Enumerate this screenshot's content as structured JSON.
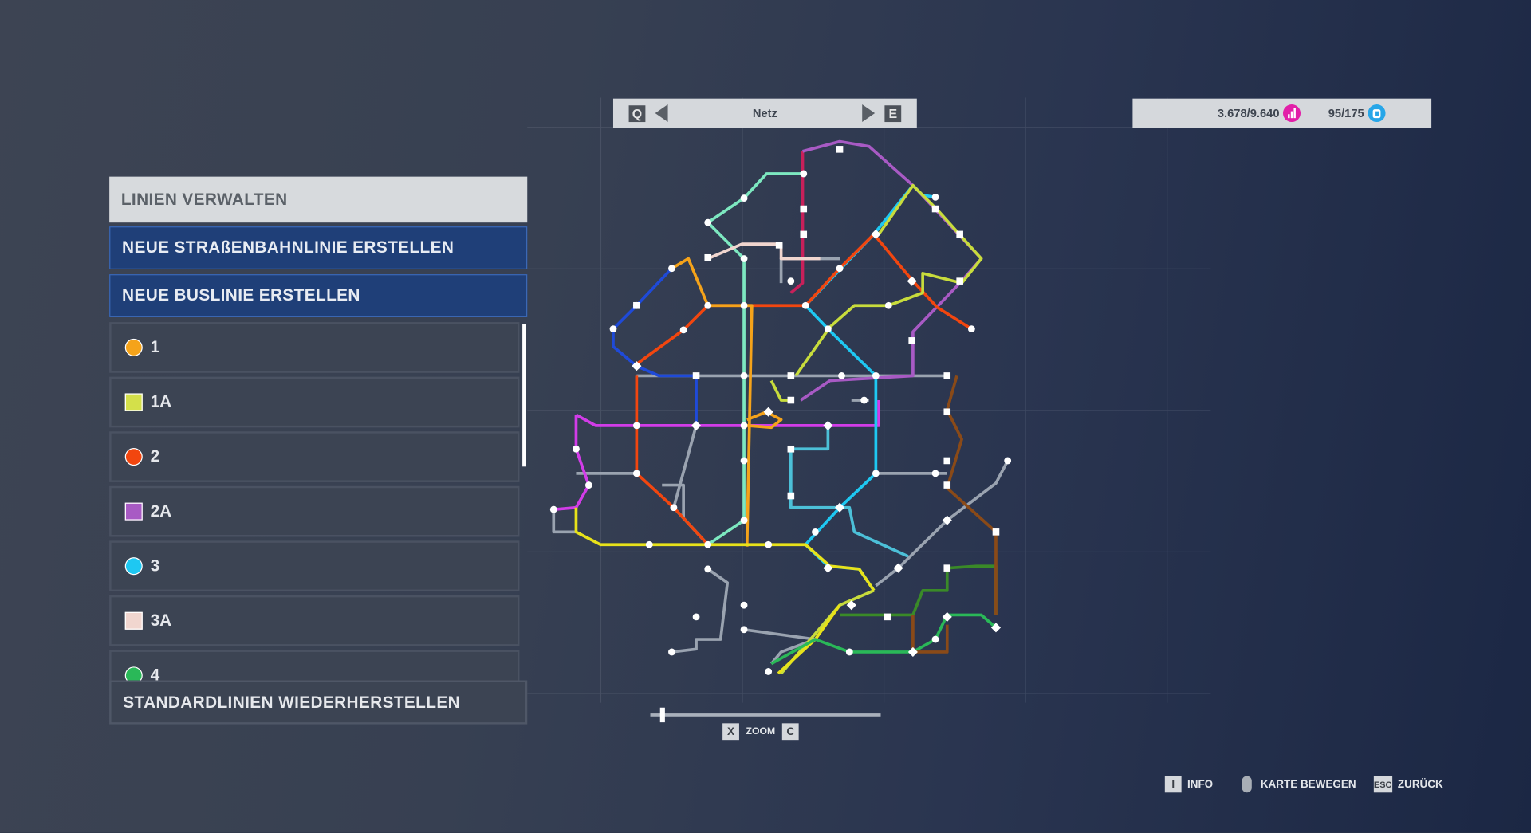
{
  "topbar": {
    "prev_key": "Q",
    "next_key": "E",
    "title": "Netz"
  },
  "stats": {
    "passengers": "3.678/9.640",
    "passengers_icon": "bar-chart-icon",
    "passengers_color": "#e21fa8",
    "vehicles": "95/175",
    "vehicles_icon": "tram-icon",
    "vehicles_color": "#27a6e8"
  },
  "panel": {
    "title": "LINIEN VERWALTEN",
    "new_tram": "NEUE STRAßENBAHNLINIE ERSTELLEN",
    "new_bus": "NEUE BUSLINIE ERSTELLEN",
    "lines": [
      {
        "label": "1",
        "shape": "circle",
        "color": "#f5a31a"
      },
      {
        "label": "1A",
        "shape": "square",
        "color": "#d4e04a"
      },
      {
        "label": "2",
        "shape": "circle",
        "color": "#f2460f"
      },
      {
        "label": "2A",
        "shape": "square",
        "color": "#a85ac4"
      },
      {
        "label": "3",
        "shape": "circle",
        "color": "#1ec8f2"
      },
      {
        "label": "3A",
        "shape": "square",
        "color": "#f1d6cf"
      },
      {
        "label": "4",
        "shape": "circle",
        "color": "#2ab858"
      }
    ],
    "restore": "STANDARDLINIEN WIEDERHERSTELLEN"
  },
  "map": {
    "line_colors": {
      "yellow": "#e8e21a",
      "lime": "#c8dc3c",
      "orange": "#f5a31a",
      "red": "#f2460f",
      "purple": "#a85ac4",
      "magenta": "#d23ce8",
      "cyan": "#1ec8f2",
      "pink": "#f1d6cf",
      "green": "#2ab858",
      "mint": "#7de8c0",
      "blue": "#1f4ad8",
      "crimson": "#c8205a",
      "grey": "#9aa3b0",
      "brown": "#8a4a18",
      "teal": "#4cc0d8",
      "darkgreen": "#3a8a28"
    }
  },
  "zoom": {
    "zoom_out_key": "X",
    "label": "ZOOM",
    "zoom_in_key": "C",
    "level": 0.05
  },
  "hints": [
    {
      "key": "I",
      "label": "INFO"
    },
    {
      "key": "mouse",
      "label": "KARTE BEWEGEN"
    },
    {
      "key": "ESC",
      "label": "ZURÜCK"
    }
  ]
}
